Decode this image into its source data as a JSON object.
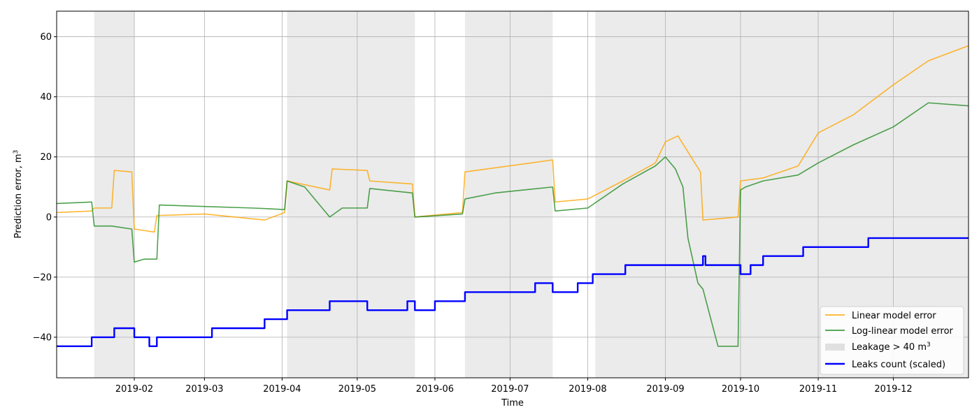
{
  "chart_data": {
    "type": "line",
    "title": "",
    "xlabel": "Time",
    "ylabel": "Prediction error, m",
    "ylabel_superscript": "3",
    "x_range": [
      "2019-01-01",
      "2019-12-31"
    ],
    "ylim": [
      -53.5,
      68.5
    ],
    "grid": true,
    "legend_position": "lower-right",
    "x_ticks": [
      {
        "date": "2019-02-01",
        "label": "2019-02"
      },
      {
        "date": "2019-03-01",
        "label": "2019-03"
      },
      {
        "date": "2019-04-01",
        "label": "2019-04"
      },
      {
        "date": "2019-05-01",
        "label": "2019-05"
      },
      {
        "date": "2019-06-01",
        "label": "2019-06"
      },
      {
        "date": "2019-07-01",
        "label": "2019-07"
      },
      {
        "date": "2019-08-01",
        "label": "2019-08"
      },
      {
        "date": "2019-09-01",
        "label": "2019-09"
      },
      {
        "date": "2019-10-01",
        "label": "2019-10"
      },
      {
        "date": "2019-11-01",
        "label": "2019-11"
      },
      {
        "date": "2019-12-01",
        "label": "2019-12"
      }
    ],
    "y_ticks": [
      -40,
      -20,
      0,
      20,
      40,
      60
    ],
    "shaded_regions": [
      {
        "start": "2019-01-16",
        "end": "2019-02-01"
      },
      {
        "start": "2019-04-03",
        "end": "2019-05-24"
      },
      {
        "start": "2019-06-13",
        "end": "2019-07-18"
      },
      {
        "start": "2019-08-04",
        "end": "2019-12-31"
      }
    ],
    "series": [
      {
        "name": "Linear model error",
        "color": "#ffa500",
        "x": [
          "2019-01-01",
          "2019-01-15",
          "2019-01-16",
          "2019-01-23",
          "2019-01-24",
          "2019-01-31",
          "2019-02-01",
          "2019-02-09",
          "2019-02-10",
          "2019-03-01",
          "2019-03-25",
          "2019-04-02",
          "2019-04-03",
          "2019-04-20",
          "2019-04-21",
          "2019-05-05",
          "2019-05-06",
          "2019-05-23",
          "2019-05-24",
          "2019-06-12",
          "2019-06-13",
          "2019-07-18",
          "2019-07-19",
          "2019-08-01",
          "2019-08-15",
          "2019-08-28",
          "2019-09-01",
          "2019-09-06",
          "2019-09-15",
          "2019-09-16",
          "2019-09-30",
          "2019-10-01",
          "2019-10-10",
          "2019-10-24",
          "2019-11-01",
          "2019-11-15",
          "2019-12-01",
          "2019-12-15",
          "2019-12-31"
        ],
        "y": [
          1.5,
          2,
          3,
          3,
          15.5,
          15,
          -4,
          -5,
          0.5,
          1,
          -1,
          1.5,
          12,
          9,
          16,
          15.5,
          12,
          11,
          0,
          1.5,
          15,
          19,
          5,
          6,
          12,
          18,
          25,
          27,
          15,
          -1,
          0,
          12,
          13,
          17,
          28,
          34,
          44,
          52,
          57
        ]
      },
      {
        "name": "Log-linear model error",
        "color": "#228b22",
        "x": [
          "2019-01-01",
          "2019-01-15",
          "2019-01-16",
          "2019-01-23",
          "2019-01-31",
          "2019-02-01",
          "2019-02-05",
          "2019-02-10",
          "2019-02-11",
          "2019-03-01",
          "2019-03-20",
          "2019-04-02",
          "2019-04-03",
          "2019-04-10",
          "2019-04-20",
          "2019-04-25",
          "2019-05-05",
          "2019-05-06",
          "2019-05-23",
          "2019-05-24",
          "2019-06-12",
          "2019-06-13",
          "2019-06-25",
          "2019-07-18",
          "2019-07-19",
          "2019-08-01",
          "2019-08-15",
          "2019-08-28",
          "2019-09-01",
          "2019-09-05",
          "2019-09-08",
          "2019-09-10",
          "2019-09-14",
          "2019-09-16",
          "2019-09-22",
          "2019-09-30",
          "2019-10-01",
          "2019-10-03",
          "2019-10-10",
          "2019-10-24",
          "2019-11-01",
          "2019-11-15",
          "2019-12-01",
          "2019-12-15",
          "2019-12-31"
        ],
        "y": [
          4.5,
          5,
          -3,
          -3,
          -4,
          -15,
          -14,
          -14,
          4,
          3.5,
          3,
          2.5,
          12,
          10,
          0,
          3,
          3,
          9.5,
          8,
          0,
          1,
          6,
          8,
          10,
          2,
          3,
          11,
          17,
          20,
          16,
          10,
          -7,
          -22,
          -24,
          -43,
          -43,
          9,
          10,
          12,
          14,
          18,
          24,
          30,
          38,
          37
        ]
      },
      {
        "name": "Leaks count (scaled)",
        "color": "#0000ff",
        "step": true,
        "x": [
          "2019-01-01",
          "2019-01-15",
          "2019-01-24",
          "2019-02-01",
          "2019-02-07",
          "2019-02-10",
          "2019-03-04",
          "2019-03-25",
          "2019-04-03",
          "2019-04-20",
          "2019-05-05",
          "2019-05-21",
          "2019-05-24",
          "2019-06-01",
          "2019-06-13",
          "2019-07-11",
          "2019-07-18",
          "2019-07-28",
          "2019-08-03",
          "2019-08-16",
          "2019-09-16",
          "2019-09-17",
          "2019-10-01",
          "2019-10-05",
          "2019-10-10",
          "2019-10-26",
          "2019-11-21",
          "2019-12-31"
        ],
        "y": [
          -43,
          -40,
          -37,
          -40,
          -43,
          -40,
          -37,
          -34,
          -31,
          -28,
          -31,
          -28,
          -31,
          -28,
          -25,
          -22,
          -25,
          -22,
          -19,
          -16,
          -13,
          -16,
          -19,
          -16,
          -13,
          -10,
          -7,
          -7
        ]
      }
    ],
    "legend": [
      {
        "label": "Linear model error",
        "kind": "line",
        "color": "#ffa500"
      },
      {
        "label": "Log-linear model error",
        "kind": "line",
        "color": "#228b22"
      },
      {
        "label": "Leakage > 40 m",
        "superscript": "3",
        "kind": "patch",
        "color": "#e0e0e0"
      },
      {
        "label": "Leaks count (scaled)",
        "kind": "line",
        "color": "#0000ff"
      }
    ]
  }
}
